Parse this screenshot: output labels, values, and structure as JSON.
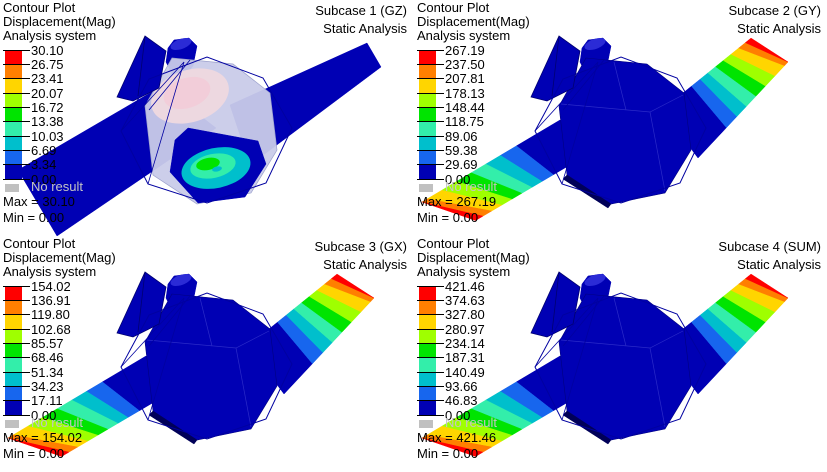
{
  "colors": {
    "legend": [
      "#FF0000",
      "#FF7F00",
      "#FFD500",
      "#9FFF00",
      "#00E400",
      "#33EEAA",
      "#00BFCC",
      "#1766EE",
      "#0000B4"
    ],
    "no_result": "#C0C0C0",
    "no_result_text": "#C4C4C4",
    "background": "#FFFFFF",
    "wireframe": "#0000A0",
    "transparent_body": "#C9CBE9",
    "pink_contour_outer": "#EDD8E0",
    "pink_contour_inner": "#F2CDD9"
  },
  "panels": [
    {
      "header": {
        "subcase": "Subcase 1 (GZ)",
        "analysis": "Static Analysis"
      },
      "contour": {
        "title": "Contour Plot",
        "result": "Displacement(Mag)",
        "system": "Analysis system"
      },
      "legend_values": [
        "30.10",
        "26.75",
        "23.41",
        "20.07",
        "16.72",
        "13.38",
        "10.03",
        "6.69",
        "3.34",
        "0.00"
      ],
      "no_result_label": "No result",
      "max_label": "Max = 30.10",
      "min_label": "Min = 0.00",
      "model_style": "transparent"
    },
    {
      "header": {
        "subcase": "Subcase 2 (GY)",
        "analysis": "Static Analysis"
      },
      "contour": {
        "title": "Contour Plot",
        "result": "Displacement(Mag)",
        "system": "Analysis system"
      },
      "legend_values": [
        "267.19",
        "237.50",
        "207.81",
        "178.13",
        "148.44",
        "118.75",
        "89.06",
        "59.38",
        "29.69",
        "0.00"
      ],
      "no_result_label": "No result",
      "max_label": "Max = 267.19",
      "min_label": "Min = 0.00",
      "model_style": "solid"
    },
    {
      "header": {
        "subcase": "Subcase 3 (GX)",
        "analysis": "Static Analysis"
      },
      "contour": {
        "title": "Contour Plot",
        "result": "Displacement(Mag)",
        "system": "Analysis system"
      },
      "legend_values": [
        "154.02",
        "136.91",
        "119.80",
        "102.68",
        "85.57",
        "68.46",
        "51.34",
        "34.23",
        "17.11",
        "0.00"
      ],
      "no_result_label": "No result",
      "max_label": "Max = 154.02",
      "min_label": "Min = 0.00",
      "model_style": "solid"
    },
    {
      "header": {
        "subcase": "Subcase 4 (SUM)",
        "analysis": "Static Analysis"
      },
      "contour": {
        "title": "Contour Plot",
        "result": "Displacement(Mag)",
        "system": "Analysis system"
      },
      "legend_values": [
        "421.46",
        "374.63",
        "327.80",
        "280.97",
        "234.14",
        "187.31",
        "140.49",
        "93.66",
        "46.83",
        "0.00"
      ],
      "no_result_label": "No result",
      "max_label": "Max = 421.46",
      "min_label": "Min = 0.00",
      "model_style": "solid"
    }
  ]
}
